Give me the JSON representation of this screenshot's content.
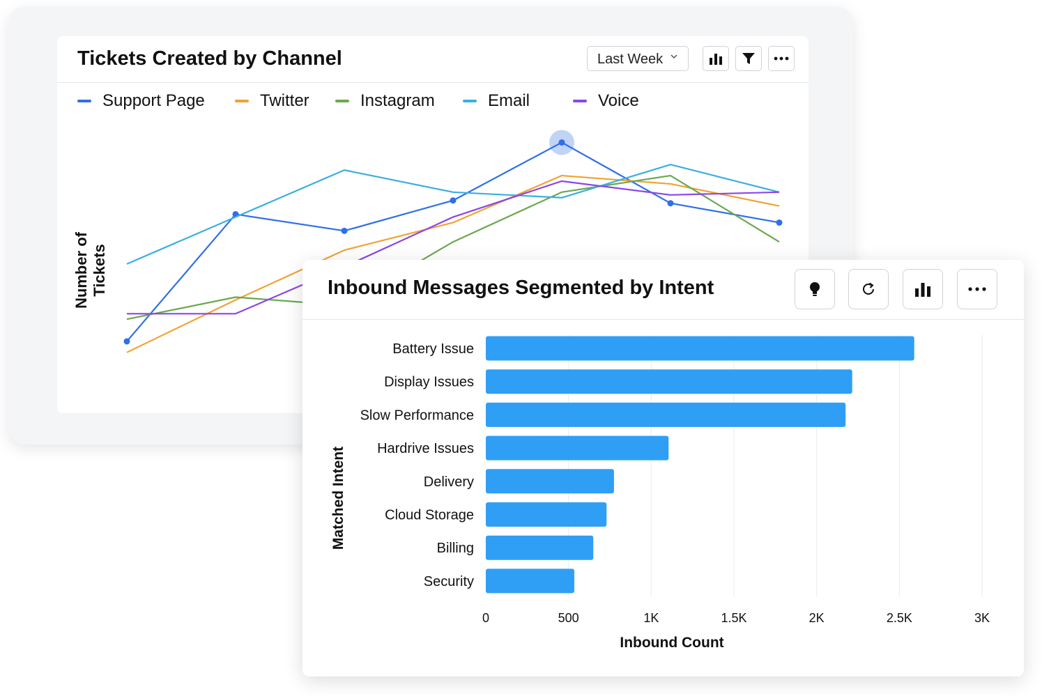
{
  "line_card": {
    "title": "Tickets Created by Channel",
    "period_label": "Last Week",
    "icons": [
      "bar-chart-icon",
      "filter-icon",
      "more-icon"
    ]
  },
  "bar_card": {
    "title": "Inbound Messages Segmented by Intent",
    "icons": [
      "lightbulb-icon",
      "refresh-icon",
      "bar-chart-icon",
      "more-icon"
    ]
  },
  "chart_data": [
    {
      "type": "line",
      "title": "Tickets Created by Channel",
      "xlabel": "",
      "ylabel": "Number of Tickets",
      "ylim": [
        0,
        100
      ],
      "x": [
        1,
        2,
        3,
        4,
        5,
        6,
        7
      ],
      "legend_position": "top-left",
      "grid": false,
      "series": [
        {
          "name": "Support Page",
          "color": "#2f6fe8",
          "values": [
            27,
            73,
            67,
            78,
            99,
            77,
            70
          ],
          "markers": true
        },
        {
          "name": "Twitter",
          "color": "#f0a233",
          "values": [
            23,
            42,
            60,
            70,
            87,
            84,
            76
          ],
          "markers": false
        },
        {
          "name": "Instagram",
          "color": "#6aa84f",
          "values": [
            35,
            43,
            40,
            63,
            81,
            87,
            63
          ],
          "markers": false
        },
        {
          "name": "Email",
          "color": "#3baee0",
          "values": [
            55,
            72,
            89,
            81,
            79,
            91,
            81
          ],
          "markers": false
        },
        {
          "name": "Voice",
          "color": "#8a46e8",
          "values": [
            37,
            37,
            54,
            72,
            85,
            80,
            81
          ],
          "markers": false
        }
      ],
      "highlight_point": {
        "series": "Support Page",
        "x": 5
      }
    },
    {
      "type": "bar",
      "orientation": "horizontal",
      "title": "Inbound Messages Segmented by Intent",
      "xlabel": "Inbound Count",
      "ylabel": "Matched Intent",
      "xlim": [
        0,
        3000
      ],
      "tick_labels": [
        "0",
        "500",
        "1K",
        "1.5K",
        "2K",
        "2.5K",
        "3K"
      ],
      "tick_values": [
        0,
        500,
        1000,
        1500,
        2000,
        2500,
        3000
      ],
      "categories": [
        "Battery Issue",
        "Display Issues",
        "Slow Performance",
        "Hardrive Issues",
        "Delivery",
        "Cloud Storage",
        "Billing",
        "Security"
      ],
      "values": [
        2590,
        2215,
        2175,
        1105,
        775,
        730,
        650,
        535
      ],
      "bar_color": "#2f9ff5",
      "grid": true
    }
  ]
}
